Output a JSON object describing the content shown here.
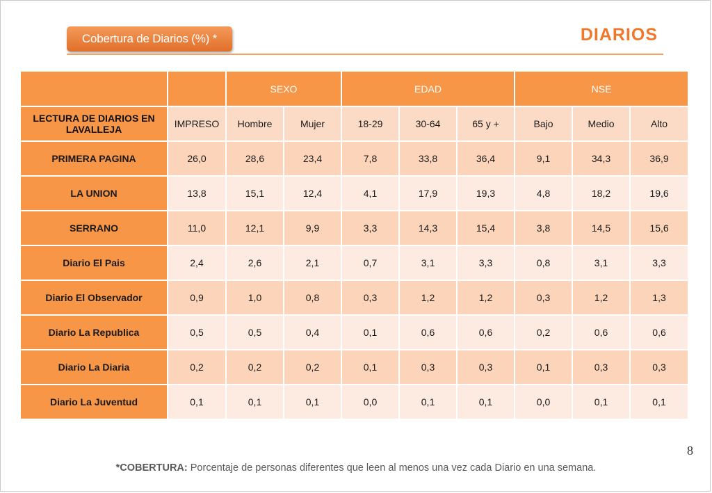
{
  "header": {
    "tab_label": "Cobertura de Diarios (%) *",
    "title": "DIARIOS"
  },
  "table": {
    "group_headers": [
      "SEXO",
      "EDAD",
      "NSE"
    ],
    "corner_label": "LECTURA DE DIARIOS EN LAVALLEJA",
    "columns": [
      "IMPRESO",
      "Hombre",
      "Mujer",
      "18-29",
      "30-64",
      "65 y +",
      "Bajo",
      "Medio",
      "Alto"
    ],
    "rows": [
      {
        "label": "PRIMERA PAGINA",
        "values": [
          "26,0",
          "28,6",
          "23,4",
          "7,8",
          "33,8",
          "36,4",
          "9,1",
          "34,3",
          "36,9"
        ]
      },
      {
        "label": "LA UNION",
        "values": [
          "13,8",
          "15,1",
          "12,4",
          "4,1",
          "17,9",
          "19,3",
          "4,8",
          "18,2",
          "19,6"
        ]
      },
      {
        "label": "SERRANO",
        "values": [
          "11,0",
          "12,1",
          "9,9",
          "3,3",
          "14,3",
          "15,4",
          "3,8",
          "14,5",
          "15,6"
        ]
      },
      {
        "label": "Diario El Pais",
        "values": [
          "2,4",
          "2,6",
          "2,1",
          "0,7",
          "3,1",
          "3,3",
          "0,8",
          "3,1",
          "3,3"
        ]
      },
      {
        "label": "Diario El Observador",
        "values": [
          "0,9",
          "1,0",
          "0,8",
          "0,3",
          "1,2",
          "1,2",
          "0,3",
          "1,2",
          "1,3"
        ]
      },
      {
        "label": "Diario La Republica",
        "values": [
          "0,5",
          "0,5",
          "0,4",
          "0,1",
          "0,6",
          "0,6",
          "0,2",
          "0,6",
          "0,6"
        ]
      },
      {
        "label": "Diario La Diaria",
        "values": [
          "0,2",
          "0,2",
          "0,2",
          "0,1",
          "0,3",
          "0,3",
          "0,1",
          "0,3",
          "0,3"
        ]
      },
      {
        "label": "Diario La Juventud",
        "values": [
          "0,1",
          "0,1",
          "0,1",
          "0,0",
          "0,1",
          "0,1",
          "0,0",
          "0,1",
          "0,1"
        ]
      }
    ]
  },
  "page_number": "8",
  "footnote": {
    "bold": "*COBERTURA:",
    "text": " Porcentaje de personas diferentes que leen al menos una vez cada Diario en una semana."
  },
  "colors": {
    "accent": "#f79646",
    "title": "#f0782a",
    "row_odd": "#fbd4ba",
    "row_even": "#fdeae0"
  }
}
